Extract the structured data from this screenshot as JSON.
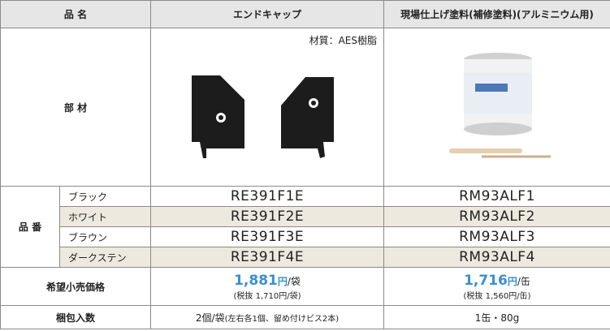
{
  "header": {
    "product_name": "品 名",
    "end_cap": "エンドキャップ",
    "paint": "現場仕上げ塗料(補修塗料)(アルミニウム用)"
  },
  "parts": {
    "label": "部 材",
    "material": "材質：AES樹脂"
  },
  "part_numbers": {
    "label": "品 番",
    "rows": [
      [
        "ブラック",
        "RE391F1E",
        "RM93ALF1"
      ],
      [
        "ホワイト",
        "RE391F2E",
        "RM93ALF2"
      ],
      [
        "ブラウン",
        "RE391F3E",
        "RM93ALF3"
      ],
      [
        "ダークステン",
        "RE391F4E",
        "RM93ALF4"
      ]
    ]
  },
  "price": {
    "label": "希望小売価格",
    "end_cap": {
      "amount": "1,881",
      "yen": "円",
      "unit": "/袋",
      "tax": "(税抜 1,710円/袋)"
    },
    "paint": {
      "amount": "1,716",
      "yen": "円",
      "unit": "/缶",
      "tax": "(税抜 1,560円/缶)"
    }
  },
  "packaging": {
    "label": "梱包入数",
    "end_cap": "2個/袋",
    "end_cap_note": "(左右各1個、留め付けビス2本)",
    "paint": "1缶・80g"
  }
}
